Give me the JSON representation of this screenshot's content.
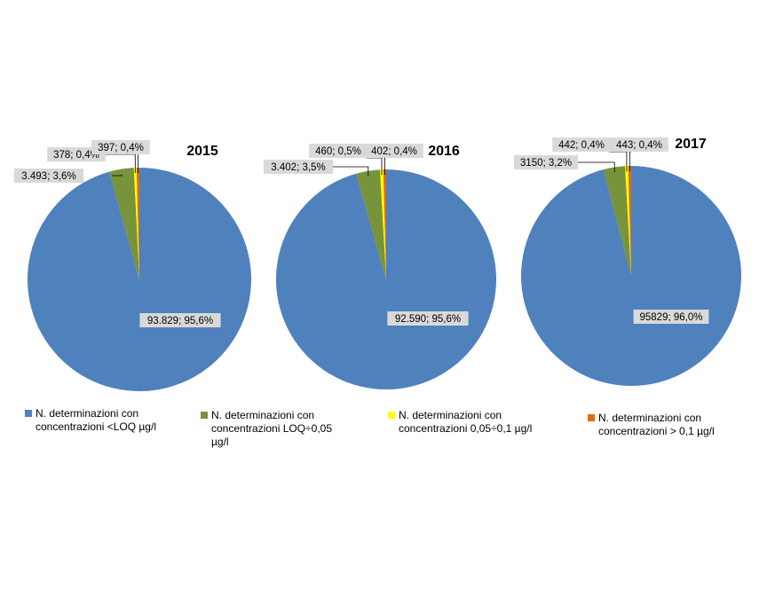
{
  "chart_data": [
    {
      "type": "pie",
      "title": "2015",
      "slices": [
        {
          "category": "N. determinazioni con concentrazioni <LOQ µg/l",
          "value": 93829,
          "label": "93.829; 95,6%"
        },
        {
          "category": "N. determinazioni con concentrazioni LOQ÷0,05 µg/l",
          "value": 3493,
          "label": "3.493; 3,6%"
        },
        {
          "category": "N. determinazioni con concentrazioni 0,05÷0,1 µg/l",
          "value": 378,
          "label": "378; 0,4%"
        },
        {
          "category": "N. determinazioni con concentrazioni > 0,1 µg/l",
          "value": 397,
          "label": "397; 0,4%"
        }
      ]
    },
    {
      "type": "pie",
      "title": "2016",
      "slices": [
        {
          "category": "N. determinazioni con concentrazioni <LOQ µg/l",
          "value": 92590,
          "label": "92.590; 95,6%"
        },
        {
          "category": "N. determinazioni con concentrazioni LOQ÷0,05 µg/l",
          "value": 3402,
          "label": "3.402; 3,5%"
        },
        {
          "category": "N. determinazioni con concentrazioni 0,05÷0,1 µg/l",
          "value": 460,
          "label": "460; 0,5%"
        },
        {
          "category": "N. determinazioni con concentrazioni > 0,1 µg/l",
          "value": 402,
          "label": "402; 0,4%"
        }
      ]
    },
    {
      "type": "pie",
      "title": "2017",
      "slices": [
        {
          "category": "N. determinazioni con concentrazioni <LOQ µg/l",
          "value": 95829,
          "label": "95829; 96,0%"
        },
        {
          "category": "N. determinazioni con concentrazioni LOQ÷0,05 µg/l",
          "value": 3150,
          "label": "3150; 3,2%"
        },
        {
          "category": "N. determinazioni con concentrazioni 0,05÷0,1 µg/l",
          "value": 442,
          "label": "442; 0,4%"
        },
        {
          "category": "N. determinazioni con concentrazioni > 0,1 µg/l",
          "value": 443,
          "label": "443; 0,4%"
        }
      ]
    }
  ],
  "legend": {
    "placement": "bottom",
    "items": [
      {
        "label": "N. determinazioni con concentrazioni <LOQ µg/l",
        "color": "#4f81bd"
      },
      {
        "label": "N. determinazioni con concentrazioni LOQ÷0,05 µg/l",
        "color": "#77933c"
      },
      {
        "label": "N. determinazioni con concentrazioni 0,05÷0,1 µg/l",
        "color": "#ffff00"
      },
      {
        "label": "N. determinazioni con concentrazioni > 0,1 µg/l",
        "color": "#e36c09"
      }
    ]
  }
}
